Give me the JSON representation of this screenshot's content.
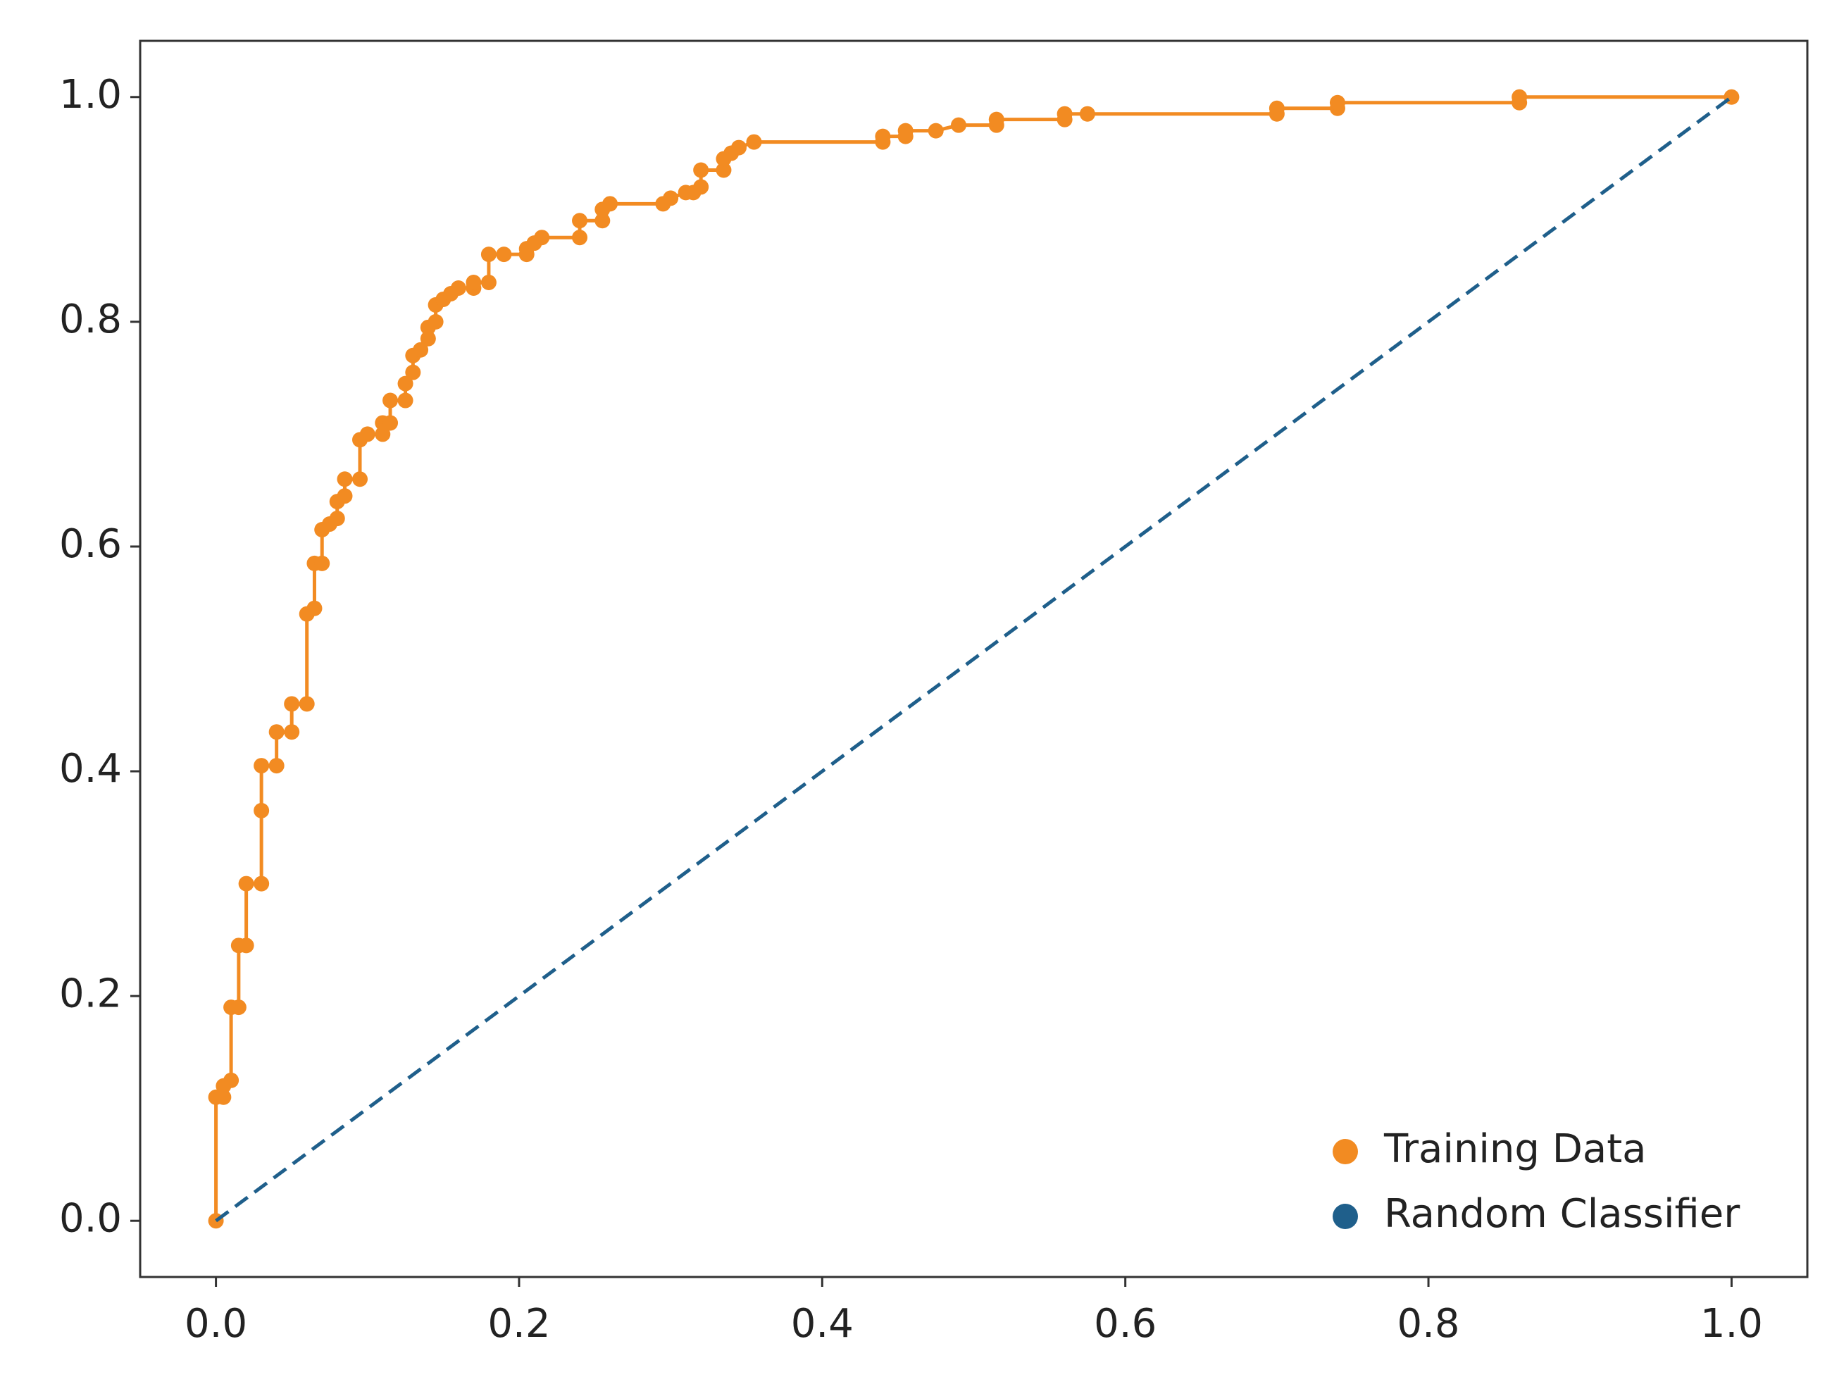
{
  "chart_data": {
    "type": "line",
    "xlim": [
      -0.05,
      1.05
    ],
    "ylim": [
      -0.05,
      1.05
    ],
    "xticks": [
      {
        "value": 0,
        "label": "0.0"
      },
      0.2,
      0.4,
      0.6,
      0.8,
      {
        "value": 1,
        "label": "1.0"
      }
    ],
    "yticks": [
      {
        "value": 0,
        "label": "0.0"
      },
      0.2,
      0.4,
      0.6,
      0.8,
      {
        "value": 1,
        "label": "1.0"
      }
    ],
    "grid": false,
    "legend": "lower right",
    "series": [
      {
        "name": "Training Data",
        "color": "#f28b22",
        "markers": true,
        "linestyle": "solid",
        "x": [
          0,
          0,
          0.005,
          0.005,
          0.01,
          0.01,
          0.015,
          0.015,
          0.02,
          0.02,
          0.03,
          0.03,
          0.03,
          0.04,
          0.04,
          0.05,
          0.05,
          0.06,
          0.06,
          0.065,
          0.065,
          0.07,
          0.07,
          0.075,
          0.08,
          0.08,
          0.085,
          0.085,
          0.095,
          0.095,
          0.1,
          0.11,
          0.11,
          0.115,
          0.115,
          0.125,
          0.125,
          0.13,
          0.13,
          0.135,
          0.14,
          0.14,
          0.145,
          0.145,
          0.15,
          0.155,
          0.16,
          0.17,
          0.17,
          0.18,
          0.18,
          0.19,
          0.205,
          0.205,
          0.21,
          0.215,
          0.24,
          0.24,
          0.255,
          0.255,
          0.26,
          0.295,
          0.3,
          0.31,
          0.315,
          0.32,
          0.32,
          0.335,
          0.335,
          0.34,
          0.345,
          0.355,
          0.44,
          0.44,
          0.455,
          0.455,
          0.475,
          0.49,
          0.515,
          0.515,
          0.56,
          0.56,
          0.575,
          0.7,
          0.7,
          0.74,
          0.74,
          0.86,
          0.86,
          1.0
        ],
        "values": [
          0,
          0.11,
          0.11,
          0.12,
          0.125,
          0.19,
          0.19,
          0.245,
          0.245,
          0.3,
          0.3,
          0.365,
          0.405,
          0.405,
          0.435,
          0.435,
          0.46,
          0.46,
          0.54,
          0.545,
          0.585,
          0.585,
          0.615,
          0.62,
          0.625,
          0.64,
          0.645,
          0.66,
          0.66,
          0.695,
          0.7,
          0.7,
          0.71,
          0.71,
          0.73,
          0.73,
          0.745,
          0.755,
          0.77,
          0.775,
          0.785,
          0.795,
          0.8,
          0.815,
          0.82,
          0.825,
          0.83,
          0.83,
          0.835,
          0.835,
          0.86,
          0.86,
          0.86,
          0.865,
          0.87,
          0.875,
          0.875,
          0.89,
          0.89,
          0.9,
          0.905,
          0.905,
          0.91,
          0.915,
          0.915,
          0.92,
          0.935,
          0.935,
          0.945,
          0.95,
          0.955,
          0.96,
          0.96,
          0.965,
          0.965,
          0.97,
          0.97,
          0.975,
          0.975,
          0.98,
          0.98,
          0.985,
          0.985,
          0.985,
          0.99,
          0.99,
          0.995,
          0.995,
          1.0,
          1.0
        ]
      },
      {
        "name": "Random Classifier",
        "color": "#1f5f8b",
        "markers": false,
        "linestyle": "dashed",
        "x": [
          0,
          1
        ],
        "values": [
          0,
          1
        ]
      }
    ]
  }
}
